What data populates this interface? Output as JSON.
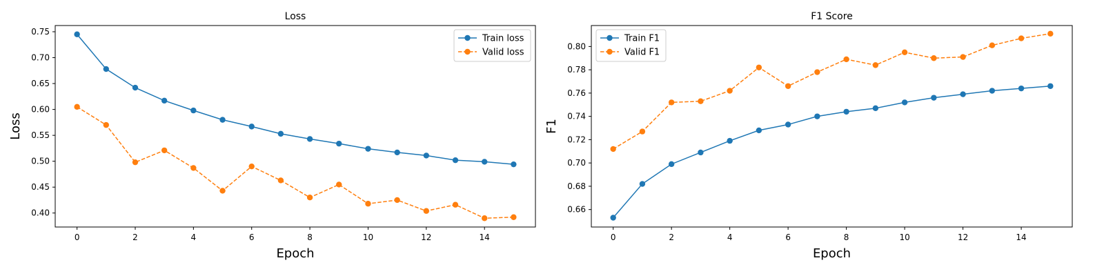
{
  "chart_data": [
    {
      "type": "line",
      "title": "Loss",
      "xlabel": "Epoch",
      "ylabel": "Loss",
      "xlim": [
        -0.75,
        15.75
      ],
      "ylim": [
        0.373,
        0.762
      ],
      "xticks": [
        0,
        2,
        4,
        6,
        8,
        10,
        12,
        14
      ],
      "yticks": [
        0.4,
        0.45,
        0.5,
        0.55,
        0.6,
        0.65,
        0.7,
        0.75
      ],
      "ytick_labels": [
        "0.40",
        "0.45",
        "0.50",
        "0.55",
        "0.60",
        "0.65",
        "0.70",
        "0.75"
      ],
      "legend": "top-right",
      "grid": false,
      "x": [
        0,
        1,
        2,
        3,
        4,
        5,
        6,
        7,
        8,
        9,
        10,
        11,
        12,
        13,
        14,
        15
      ],
      "series": [
        {
          "name": "Train loss",
          "style": "solid",
          "color": "#1f77b4",
          "values": [
            0.745,
            0.678,
            0.642,
            0.617,
            0.598,
            0.58,
            0.567,
            0.553,
            0.543,
            0.534,
            0.524,
            0.517,
            0.511,
            0.502,
            0.499,
            0.494
          ]
        },
        {
          "name": "Valid loss",
          "style": "dashed",
          "color": "#ff7f0e",
          "values": [
            0.605,
            0.57,
            0.498,
            0.521,
            0.487,
            0.443,
            0.49,
            0.463,
            0.43,
            0.455,
            0.418,
            0.425,
            0.404,
            0.416,
            0.39,
            0.392
          ]
        }
      ]
    },
    {
      "type": "line",
      "title": "F1 Score",
      "xlabel": "Epoch",
      "ylabel": "F1",
      "xlim": [
        -0.75,
        15.75
      ],
      "ylim": [
        0.645,
        0.818
      ],
      "xticks": [
        0,
        2,
        4,
        6,
        8,
        10,
        12,
        14
      ],
      "yticks": [
        0.66,
        0.68,
        0.7,
        0.72,
        0.74,
        0.76,
        0.78,
        0.8
      ],
      "ytick_labels": [
        "0.66",
        "0.68",
        "0.70",
        "0.72",
        "0.74",
        "0.76",
        "0.78",
        "0.80"
      ],
      "legend": "top-left",
      "grid": false,
      "x": [
        0,
        1,
        2,
        3,
        4,
        5,
        6,
        7,
        8,
        9,
        10,
        11,
        12,
        13,
        14,
        15
      ],
      "series": [
        {
          "name": "Train F1",
          "style": "solid",
          "color": "#1f77b4",
          "values": [
            0.653,
            0.682,
            0.699,
            0.709,
            0.719,
            0.728,
            0.733,
            0.74,
            0.744,
            0.747,
            0.752,
            0.756,
            0.759,
            0.762,
            0.764,
            0.766
          ]
        },
        {
          "name": "Valid F1",
          "style": "dashed",
          "color": "#ff7f0e",
          "values": [
            0.712,
            0.727,
            0.752,
            0.753,
            0.762,
            0.782,
            0.766,
            0.778,
            0.789,
            0.784,
            0.795,
            0.79,
            0.791,
            0.801,
            0.807,
            0.811
          ]
        }
      ]
    }
  ]
}
